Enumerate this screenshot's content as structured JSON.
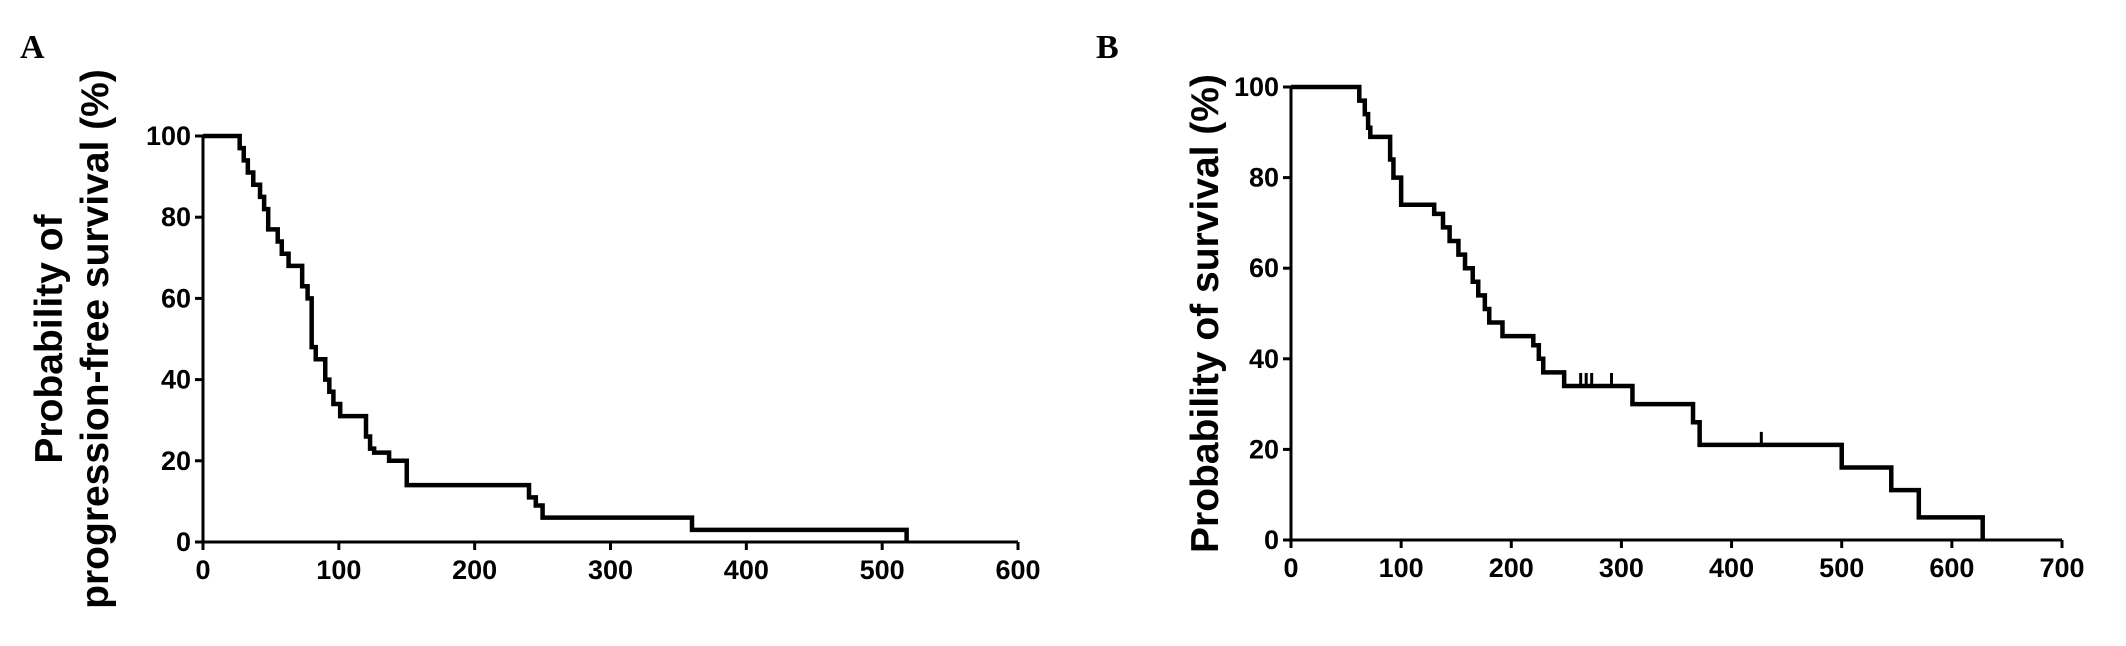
{
  "chart_data": [
    {
      "panel": "A",
      "type": "line",
      "ylabel_lines": [
        "Probability of",
        "progression-free survival (%)"
      ],
      "xlabel": "",
      "xlim": [
        0,
        600
      ],
      "ylim": [
        0,
        100
      ],
      "x_ticks": [
        0,
        100,
        200,
        300,
        400,
        500,
        600
      ],
      "y_ticks": [
        0,
        20,
        40,
        60,
        80,
        100
      ],
      "grid": false,
      "series": [
        {
          "x": [
            0,
            27,
            30,
            33,
            37,
            42,
            45,
            48,
            55,
            58,
            63,
            73,
            77,
            80,
            83,
            90,
            93,
            96,
            101,
            120,
            123,
            126,
            137,
            150,
            240,
            245,
            250,
            360,
            518
          ],
          "y": [
            100,
            97,
            94,
            91,
            88,
            85,
            82,
            77,
            74,
            71,
            68,
            63,
            60,
            48,
            45,
            40,
            37,
            34,
            31,
            26,
            23,
            22,
            20,
            14,
            11,
            9,
            6,
            3,
            0
          ]
        }
      ]
    },
    {
      "panel": "B",
      "type": "line",
      "ylabel_lines": [
        "Probability of survival (%)"
      ],
      "xlabel": "",
      "xlim": [
        0,
        700
      ],
      "ylim": [
        0,
        100
      ],
      "x_ticks": [
        0,
        100,
        200,
        300,
        400,
        500,
        600,
        700
      ],
      "y_ticks": [
        0,
        20,
        40,
        60,
        80,
        100
      ],
      "grid": false,
      "series": [
        {
          "x": [
            0,
            62,
            67,
            70,
            72,
            90,
            93,
            100,
            130,
            138,
            144,
            152,
            158,
            165,
            170,
            176,
            180,
            192,
            220,
            225,
            229,
            248,
            310,
            365,
            371,
            500,
            545,
            570,
            628
          ],
          "y": [
            100,
            97,
            94,
            91,
            89,
            84,
            80,
            74,
            72,
            69,
            66,
            63,
            60,
            57,
            54,
            51,
            48,
            45,
            43,
            40,
            37,
            34,
            30,
            26,
            21,
            16,
            11,
            5,
            0
          ],
          "censored": [
            [
              263,
              34
            ],
            [
              268,
              34
            ],
            [
              273,
              34
            ],
            [
              291,
              34
            ],
            [
              427,
              21
            ]
          ]
        }
      ]
    }
  ]
}
